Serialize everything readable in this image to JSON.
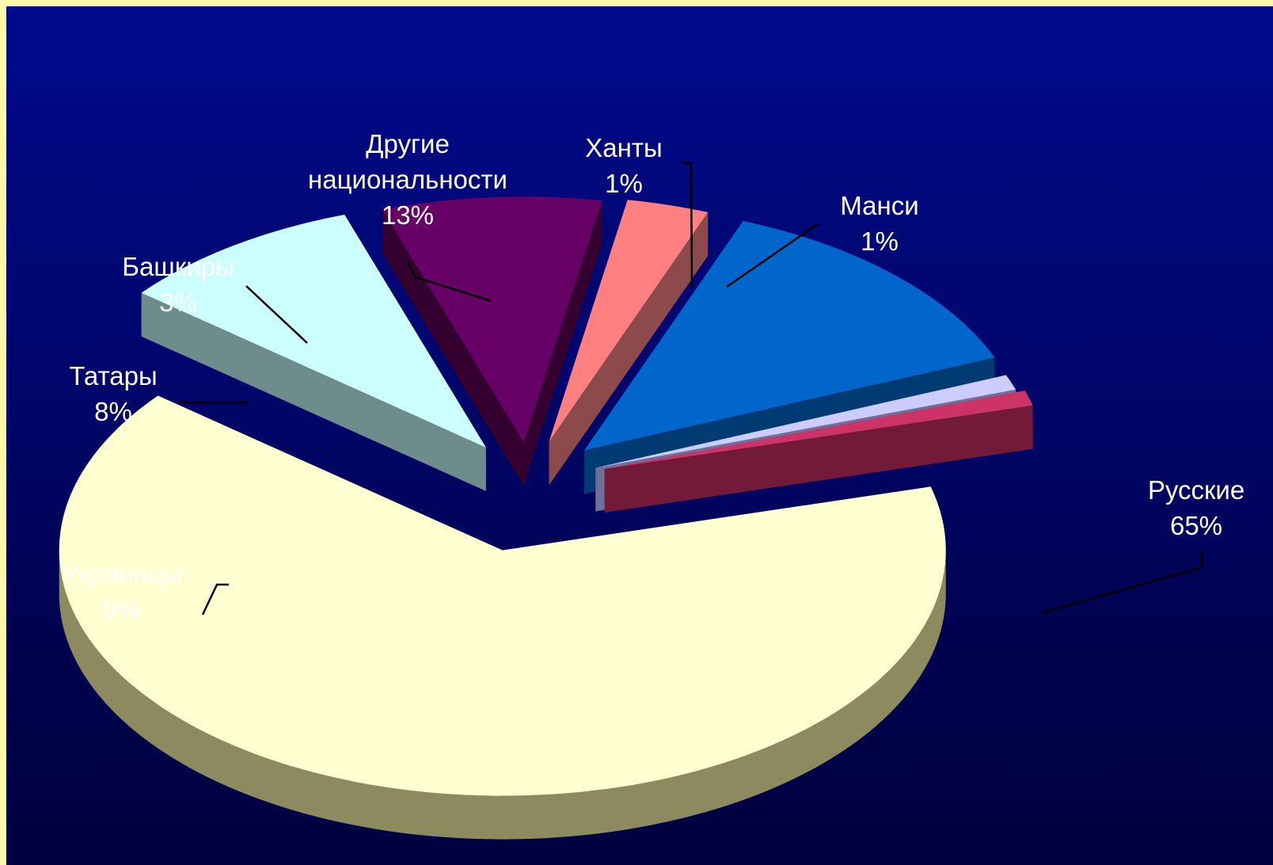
{
  "chart_data": {
    "type": "pie",
    "style": "3d-exploded",
    "title": "",
    "slices": [
      {
        "name": "Русские",
        "percent_label": "65%",
        "value": 65,
        "color": "#ffffd2",
        "side_color": "#8c8a5e"
      },
      {
        "name": "Украинцы",
        "percent_label": "9%",
        "value": 9,
        "color": "#ccffff",
        "side_color": "#6f8c8c"
      },
      {
        "name": "Татары",
        "percent_label": "8%",
        "value": 8,
        "color": "#660066",
        "side_color": "#33002f"
      },
      {
        "name": "Башкиры",
        "percent_label": "3%",
        "value": 3,
        "color": "#ff8080",
        "side_color": "#8c4a4a"
      },
      {
        "name": "Другие национальности",
        "percent_label": "13%",
        "value": 13,
        "color": "#0066cc",
        "side_color": "#003a73",
        "label_lines": [
          "Другие",
          "национальности"
        ]
      },
      {
        "name": "Ханты",
        "percent_label": "1%",
        "value": 1,
        "color": "#ccccff",
        "side_color": "#6f6f9a"
      },
      {
        "name": "Манси",
        "percent_label": "1%",
        "value": 1,
        "color": "#cc3366",
        "side_color": "#731a38"
      }
    ],
    "background": {
      "top": "#000a8c",
      "bottom": "#00013f"
    },
    "frame_color": "#fff8a8"
  }
}
